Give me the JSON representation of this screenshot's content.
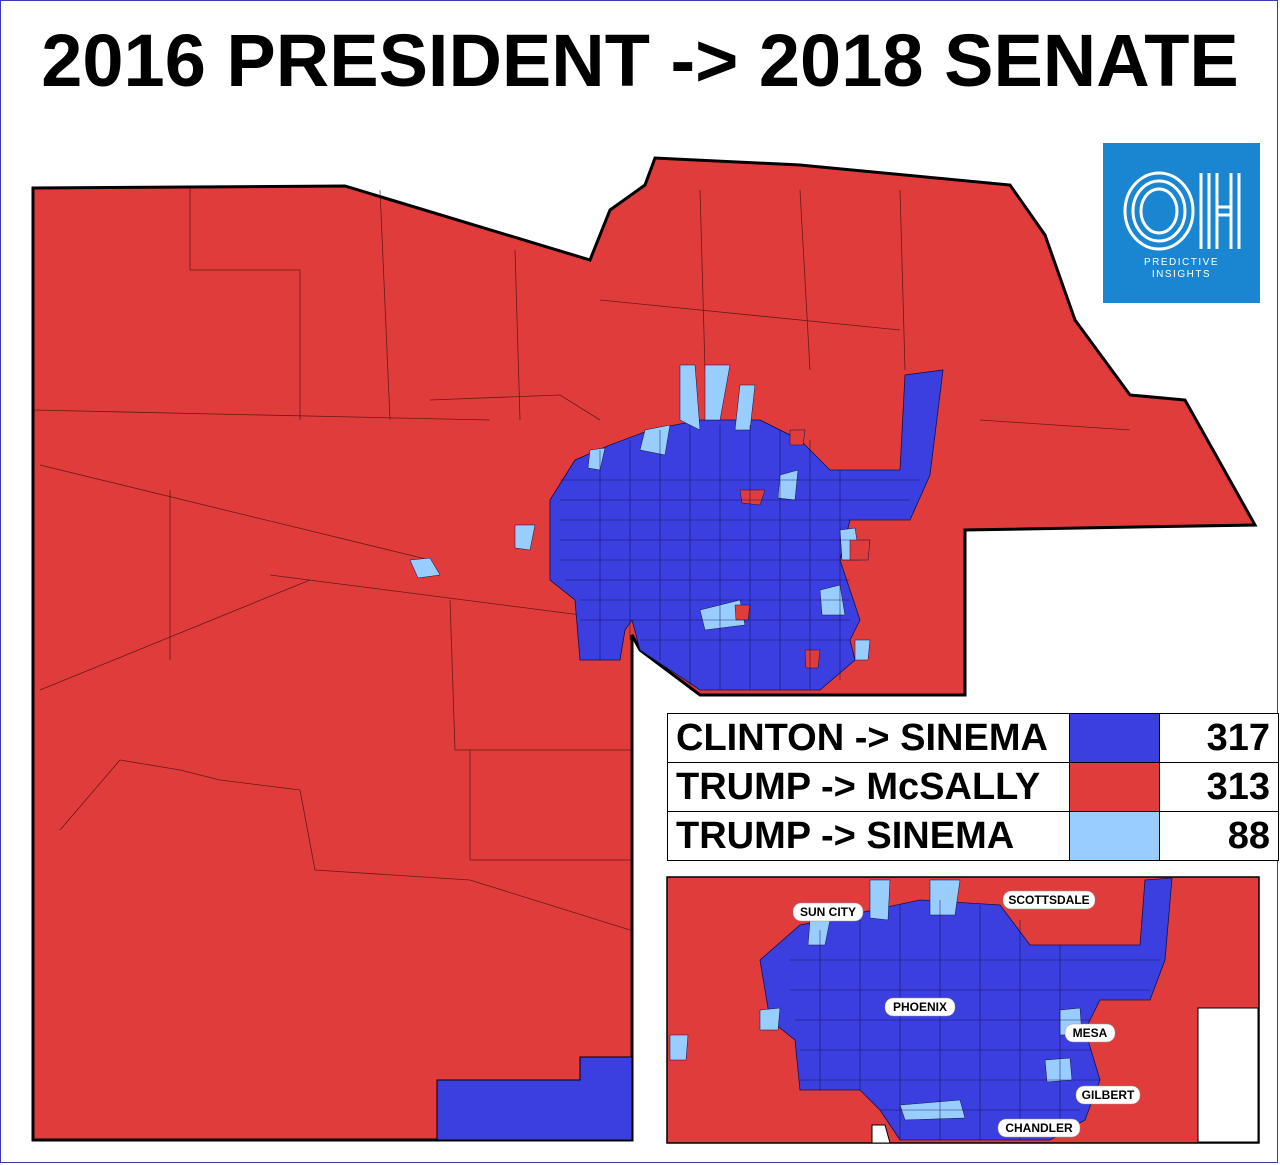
{
  "title": "2016 PRESIDENT -> 2018 SENATE",
  "colors": {
    "clinton_sinema": "#3c3fe0",
    "trump_mcsally": "#e03c3c",
    "trump_sinema": "#99ccff",
    "logo_bg": "#1a86d1"
  },
  "logo": {
    "mark": "OH",
    "line1": "PREDICTIVE",
    "line2": "INSIGHTS"
  },
  "legend": [
    {
      "label": "CLINTON -> SINEMA",
      "color": "#3c3fe0",
      "count": "317"
    },
    {
      "label": "TRUMP -> McSALLY",
      "color": "#e03c3c",
      "count": "313"
    },
    {
      "label": "TRUMP -> SINEMA",
      "color": "#99ccff",
      "count": "88"
    }
  ],
  "inset": {
    "cities": [
      "SUN CITY",
      "SCOTTSDALE",
      "PHOENIX",
      "MESA",
      "GILBERT",
      "CHANDLER"
    ]
  }
}
